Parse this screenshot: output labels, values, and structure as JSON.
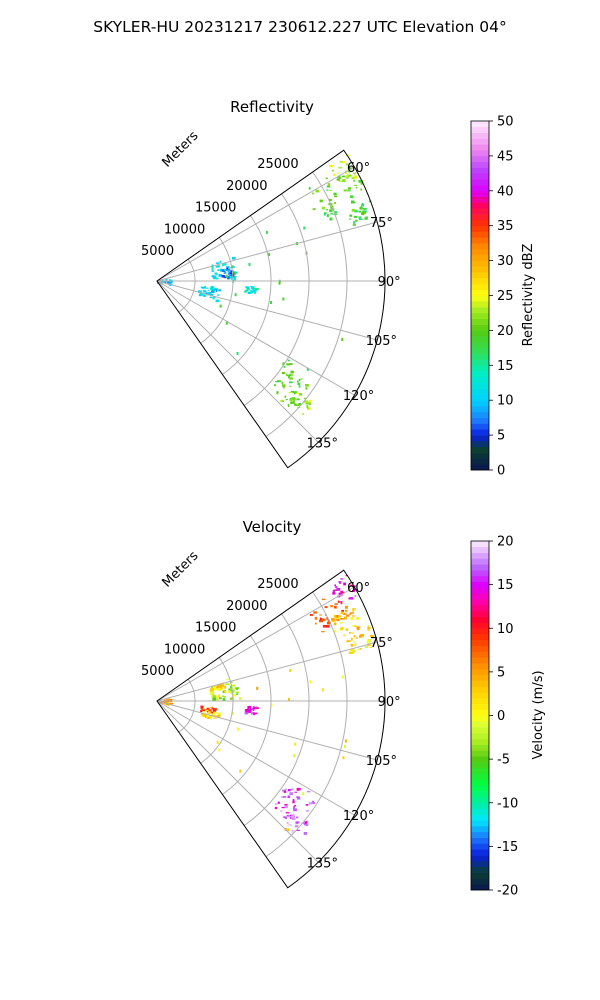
{
  "title": "SKYLER-HU  20231217  230612.227 UTC Elevation 04°",
  "chart_data": [
    {
      "type": "polar-sector",
      "title": "Reflectivity",
      "range_label": "Meters",
      "theta_range_deg": [
        55,
        145
      ],
      "r_range_m": [
        0,
        30000
      ],
      "r_ticks": [
        "5000",
        "10000",
        "15000",
        "20000",
        "25000"
      ],
      "r_tick_values": [
        5000,
        10000,
        15000,
        20000,
        25000
      ],
      "theta_ticks": [
        "60°",
        "75°",
        "90°",
        "105°",
        "120°",
        "135°"
      ],
      "theta_tick_values": [
        60,
        75,
        90,
        105,
        120,
        135
      ],
      "grid": true,
      "colorbar": {
        "label": "Reflectivity dBZ",
        "range": [
          0,
          50
        ],
        "ticks": [
          "0",
          "5",
          "10",
          "15",
          "20",
          "25",
          "30",
          "35",
          "40",
          "45",
          "50"
        ],
        "tick_values": [
          0,
          5,
          10,
          15,
          20,
          25,
          30,
          35,
          40,
          45,
          50
        ],
        "colormap": [
          [
            0,
            "#0a1650"
          ],
          [
            3,
            "#0a4030"
          ],
          [
            5,
            "#0a1ee0"
          ],
          [
            7,
            "#1e78ff"
          ],
          [
            10,
            "#00d2ff"
          ],
          [
            14,
            "#00f0c0"
          ],
          [
            17,
            "#33dd55"
          ],
          [
            20,
            "#55cc11"
          ],
          [
            23,
            "#aaee22"
          ],
          [
            25,
            "#ffff11"
          ],
          [
            28,
            "#ffcc00"
          ],
          [
            32,
            "#ff8800"
          ],
          [
            35,
            "#ff3300"
          ],
          [
            38,
            "#ff0066"
          ],
          [
            40,
            "#dd00ff"
          ],
          [
            43,
            "#bb44ff"
          ],
          [
            46,
            "#ee88ee"
          ],
          [
            50,
            "#ffeeff"
          ]
        ]
      },
      "echo_regions": [
        {
          "theta": [
            57,
            70
          ],
          "r": [
            22500,
            30000
          ],
          "value": 20
        },
        {
          "theta": [
            56,
            62
          ],
          "r": [
            27000,
            30000
          ],
          "value": 23
        },
        {
          "theta": [
            69,
            74
          ],
          "r": [
            26500,
            29000
          ],
          "value": 19
        },
        {
          "theta": [
            72,
            88
          ],
          "r": [
            7000,
            10500
          ],
          "value": 11
        },
        {
          "theta": [
            79,
            87
          ],
          "r": [
            8500,
            10000
          ],
          "value": 7
        },
        {
          "theta": [
            95,
            108
          ],
          "r": [
            5500,
            8200
          ],
          "value": 11
        },
        {
          "theta": [
            93,
            97
          ],
          "r": [
            11500,
            13000
          ],
          "value": 13
        },
        {
          "theta": [
            75,
            105
          ],
          "r": [
            0,
            1800
          ],
          "value": 9
        },
        {
          "theta": [
            121,
            132
          ],
          "r": [
            20000,
            24500
          ],
          "value": 19
        },
        {
          "theta": [
            128,
            134
          ],
          "r": [
            22500,
            26000
          ],
          "value": 22
        }
      ]
    },
    {
      "type": "polar-sector",
      "title": "Velocity",
      "range_label": "Meters",
      "theta_range_deg": [
        55,
        145
      ],
      "r_range_m": [
        0,
        30000
      ],
      "r_ticks": [
        "5000",
        "10000",
        "15000",
        "20000",
        "25000"
      ],
      "r_tick_values": [
        5000,
        10000,
        15000,
        20000,
        25000
      ],
      "theta_ticks": [
        "60°",
        "75°",
        "90°",
        "105°",
        "120°",
        "135°"
      ],
      "theta_tick_values": [
        60,
        75,
        90,
        105,
        120,
        135
      ],
      "grid": true,
      "colorbar": {
        "label": "Velocity (m/s)",
        "range": [
          -20,
          20
        ],
        "ticks": [
          "-20",
          "-15",
          "-10",
          "-5",
          "0",
          "5",
          "10",
          "15",
          "20"
        ],
        "tick_values": [
          -20,
          -15,
          -10,
          -5,
          0,
          5,
          10,
          15,
          20
        ],
        "colormap": [
          [
            -20,
            "#0a1650"
          ],
          [
            -18,
            "#0a4030"
          ],
          [
            -16,
            "#0a1ee0"
          ],
          [
            -14,
            "#1e78ff"
          ],
          [
            -12,
            "#00e8ff"
          ],
          [
            -10,
            "#00f0a0"
          ],
          [
            -8,
            "#00ff44"
          ],
          [
            -5,
            "#55cc11"
          ],
          [
            -3,
            "#aaee22"
          ],
          [
            -1,
            "#ddff33"
          ],
          [
            0,
            "#ffff11"
          ],
          [
            3,
            "#ffcc00"
          ],
          [
            6,
            "#ff8800"
          ],
          [
            9,
            "#ff3300"
          ],
          [
            11,
            "#ff0033"
          ],
          [
            13,
            "#ff00aa"
          ],
          [
            15,
            "#dd00ff"
          ],
          [
            17,
            "#bb66ff"
          ],
          [
            20,
            "#ffeeff"
          ]
        ]
      },
      "echo_regions": [
        {
          "theta": [
            56,
            62
          ],
          "r": [
            27000,
            30000
          ],
          "value": 14
        },
        {
          "theta": [
            58,
            67
          ],
          "r": [
            23000,
            28000
          ],
          "value": 8
        },
        {
          "theta": [
            64,
            72
          ],
          "r": [
            25000,
            29000
          ],
          "value": 3
        },
        {
          "theta": [
            70,
            76
          ],
          "r": [
            26000,
            29500
          ],
          "value": 1
        },
        {
          "theta": [
            72,
            88
          ],
          "r": [
            7000,
            10500
          ],
          "value": -3
        },
        {
          "theta": [
            74,
            79
          ],
          "r": [
            7000,
            8800
          ],
          "value": 2
        },
        {
          "theta": [
            93,
            97
          ],
          "r": [
            11500,
            13000
          ],
          "value": 15
        },
        {
          "theta": [
            96,
            102
          ],
          "r": [
            5500,
            7500
          ],
          "value": 8
        },
        {
          "theta": [
            100,
            108
          ],
          "r": [
            6000,
            8200
          ],
          "value": 2
        },
        {
          "theta": [
            75,
            105
          ],
          "r": [
            0,
            1800
          ],
          "value": 5
        },
        {
          "theta": [
            121,
            132
          ],
          "r": [
            20000,
            24500
          ],
          "value": 16
        },
        {
          "theta": [
            128,
            134
          ],
          "r": [
            22500,
            26000
          ],
          "value": 17
        }
      ]
    }
  ]
}
